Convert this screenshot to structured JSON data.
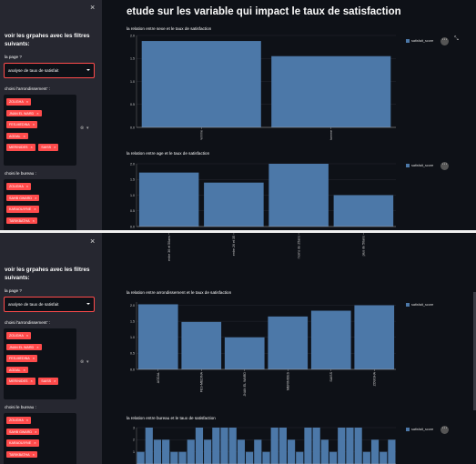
{
  "sidebar": {
    "close_icon": "×",
    "title": "voir les grpahes avec les filtres suivants:",
    "page_label": "la page ?",
    "page_value": "analyse de taux de satisfait",
    "arrondissement_label": "choisi l'arrondissement' :",
    "arrondissement_tags": [
      "ZOUGHA",
      "JNAN EL WARD",
      "FES-MEDINA",
      "AGDAL",
      "MERINIDES",
      "SAISS"
    ],
    "bureau_label": "choisi le bureau :",
    "bureau_tags": [
      "ZOUGHA",
      "SAHB GWARD",
      "KARAOUIYNE",
      "TARIKBATHA"
    ],
    "clear_icon": "⊗",
    "caret_icon": "▾",
    "tag_remove": "×"
  },
  "main": {
    "title": "etude sur les variable qui impact le taux de satisfaction"
  },
  "legend_label": "satisfait_score",
  "menu_icon": "⋯",
  "expand_icon": "⤡",
  "chart_data": [
    {
      "type": "bar",
      "title": "la relation entre sexe et le taux de satisfaction",
      "categories": [
        "Femme",
        "Homme"
      ],
      "values": [
        1.88,
        1.55
      ],
      "yticks": [
        "0.0",
        "0.5",
        "1.0",
        "1.5",
        "2.0"
      ],
      "ylim": [
        0,
        2
      ],
      "legend": "satisfait_score"
    },
    {
      "type": "bar",
      "title": "la relation entre age et le taux de satisfaction",
      "categories": [
        "entre 36 et 50ans",
        "entre 26 et 35",
        "moins de 25ans",
        "plus de 50ans"
      ],
      "values": [
        1.72,
        1.4,
        2.0,
        1.0
      ],
      "yticks": [
        "0.0",
        "0.5",
        "1.0",
        "1.5",
        "2.0"
      ],
      "ylim": [
        0,
        2
      ],
      "legend": "satisfait_score"
    },
    {
      "type": "bar",
      "title": "la relation entre arrondissement et le taux de satisfaction",
      "categories": [
        "AGDAL",
        "FES-MEDINA",
        "JNAN EL WARD",
        "MERINIDES",
        "SAISS",
        "ZOUGHA"
      ],
      "values": [
        2.03,
        1.48,
        1.0,
        1.65,
        1.83,
        2.0
      ],
      "yticks": [
        "0.0",
        "0.5",
        "1.0",
        "1.5",
        "2.0"
      ],
      "ylim": [
        0,
        2.1
      ],
      "legend": "satisfait_score"
    },
    {
      "type": "bar",
      "title": "la relation entre bureau et le taux de satisfaction",
      "values": [
        1,
        3,
        2,
        2,
        1,
        1,
        2,
        3,
        2,
        3,
        3,
        3,
        2,
        1,
        2,
        1,
        3,
        3,
        2,
        1,
        3,
        3,
        2,
        1,
        3,
        3,
        3,
        1,
        2,
        1,
        2
      ],
      "yticks": [
        "1",
        "2",
        "3"
      ],
      "ylim": [
        0,
        3
      ],
      "legend": "satisfait_score"
    }
  ]
}
